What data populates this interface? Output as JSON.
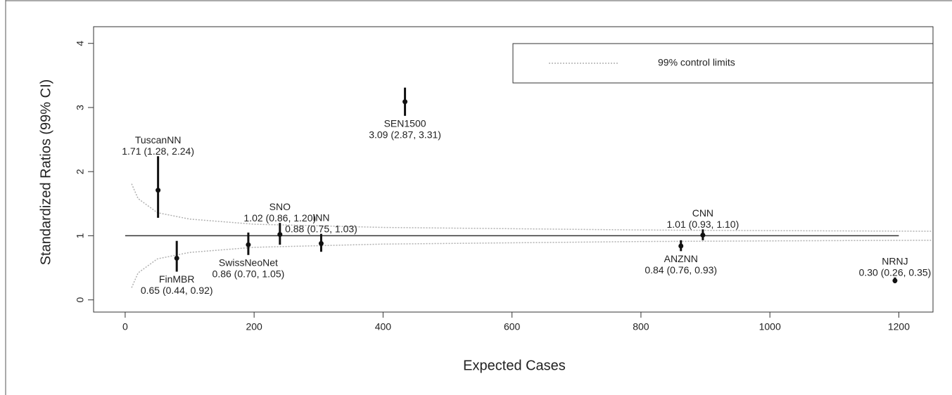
{
  "chart_data": {
    "type": "scatter",
    "x_label": "Expected Cases",
    "y_label": "Standardized Ratios (99% CI)",
    "xlim": [
      -49,
      1253
    ],
    "ylim": [
      -0.19,
      4.26
    ],
    "xticks": [
      0,
      200,
      400,
      600,
      800,
      1000,
      1200
    ],
    "yticks": [
      0,
      1,
      2,
      3,
      4
    ],
    "reference_line": 1,
    "legend": "top-right",
    "points": {
      "names": [
        "TuscanNN",
        "FinMBR",
        "SwissNeoNet",
        "SNO",
        "INN",
        "SEN1500",
        "ANZNN",
        "CNN",
        "NRNJ"
      ],
      "x": [
        51,
        80,
        191,
        240,
        304,
        434,
        862,
        896,
        1194
      ],
      "values": [
        1.71,
        0.65,
        0.86,
        1.02,
        0.88,
        3.09,
        0.84,
        1.01,
        0.3
      ],
      "lower": [
        1.28,
        0.44,
        0.7,
        0.86,
        0.75,
        2.87,
        0.76,
        0.93,
        0.26
      ],
      "upper": [
        2.24,
        0.92,
        1.05,
        1.2,
        1.03,
        3.31,
        0.93,
        1.1,
        0.35
      ],
      "value_labels": [
        "1.71 (1.28, 2.24)",
        "0.65 (0.44, 0.92)",
        "0.86 (0.70, 1.05)",
        "1.02 (0.86, 1.20)",
        "0.88 (0.75, 1.03)",
        "3.09 (2.87, 3.31)",
        "0.84 (0.76, 0.93)",
        "1.01 (0.93, 1.10)",
        "0.30 (0.26, 0.35)"
      ],
      "color": "#111111"
    },
    "control_limits": {
      "name": "99% control limits",
      "color": "#b0b0b0",
      "x": [
        10,
        20,
        50,
        100,
        200,
        400,
        600,
        800,
        1000,
        1250
      ],
      "upper": [
        1.81,
        1.58,
        1.36,
        1.26,
        1.18,
        1.13,
        1.11,
        1.09,
        1.08,
        1.07
      ],
      "lower": [
        0.19,
        0.42,
        0.64,
        0.74,
        0.82,
        0.87,
        0.89,
        0.91,
        0.92,
        0.93
      ]
    }
  }
}
